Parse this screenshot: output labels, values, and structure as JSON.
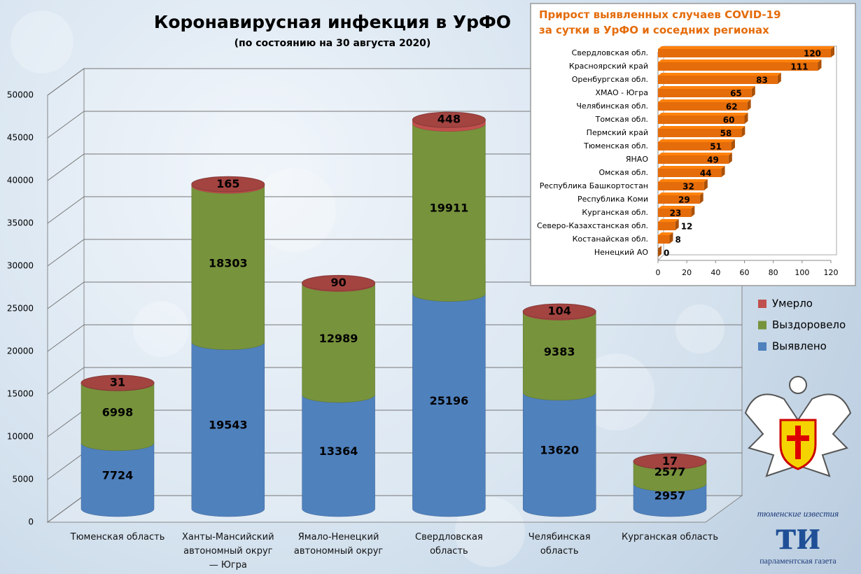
{
  "chart_data": [
    {
      "type": "bar",
      "stacked": true,
      "title": "Коронавирусная инфекция в УрФО",
      "subtitle": "(по состоянию на 30 августа 2020)",
      "categories": [
        "Тюменская область",
        "Ханты-Мансийский автономный округ — Югра",
        "Ямало-Ненецкий автономный округ",
        "Свердловская область",
        "Челябинская область",
        "Курганская область"
      ],
      "series": [
        {
          "name": "Выявлено",
          "color": "#4f81bd",
          "values": [
            7724,
            19543,
            13364,
            25196,
            13620,
            2957
          ]
        },
        {
          "name": "Выздоровело",
          "color": "#77933c",
          "values": [
            6998,
            18303,
            12989,
            19911,
            9383,
            2577
          ]
        },
        {
          "name": "Умерло",
          "color": "#c0504d",
          "values": [
            31,
            165,
            90,
            448,
            104,
            17
          ]
        }
      ],
      "ylim": [
        0,
        50000
      ],
      "yticks": [
        0,
        5000,
        10000,
        15000,
        20000,
        25000,
        30000,
        35000,
        40000,
        45000,
        50000
      ],
      "grid": true,
      "legend": "right"
    },
    {
      "type": "bar",
      "orientation": "horizontal",
      "title": "Прирост выявленных случаев COVID-19 за сутки в УрФО и соседних регионах",
      "categories": [
        "Свердловская обл.",
        "Красноярский край",
        "Оренбургская обл.",
        "ХМАО - Югра",
        "Челябинская обл.",
        "Томская обл.",
        "Пермский край",
        "Тюменская обл.",
        "ЯНАО",
        "Омская обл.",
        "Республика Башкортостан",
        "Республика Коми",
        "Курганская обл.",
        "Северо-Казахстанская обл.",
        "Костанайская обл.",
        "Ненецкий АО"
      ],
      "values": [
        120,
        111,
        83,
        65,
        62,
        60,
        58,
        51,
        49,
        44,
        32,
        29,
        23,
        12,
        8,
        0
      ],
      "color": "#e46c0a",
      "xlim": [
        0,
        120
      ],
      "xticks": [
        0,
        20,
        40,
        60,
        80,
        100,
        120
      ]
    }
  ],
  "logo": {
    "top": "тюменские известия",
    "mark": "ти",
    "bottom": "парламентская газета"
  }
}
